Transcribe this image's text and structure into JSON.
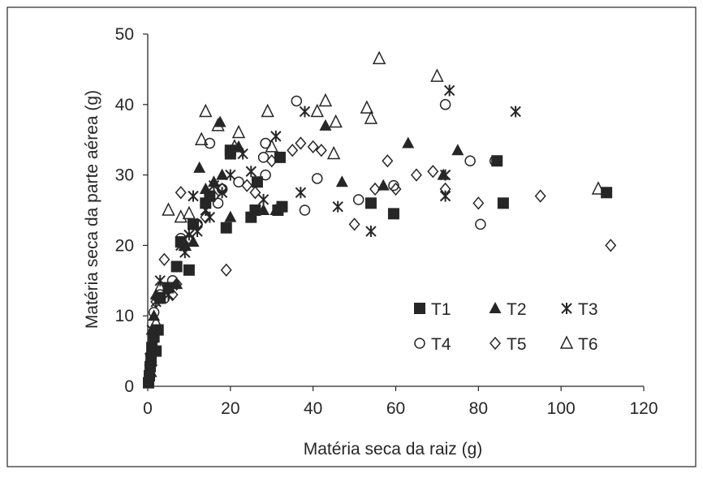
{
  "chart_data": {
    "type": "scatter",
    "xlabel": "Matéria seca da raiz (g)",
    "ylabel": "Matéria seca da parte aérea (g)",
    "xlim": [
      0,
      120
    ],
    "ylim": [
      0,
      50
    ],
    "xticks": [
      "0",
      "20",
      "40",
      "60",
      "80",
      "100",
      "120"
    ],
    "yticks": [
      "0",
      "10",
      "20",
      "30",
      "40",
      "50"
    ],
    "grid": false,
    "legend_position": "lower-right, inside plot, two rows",
    "color": "#262626",
    "series": [
      {
        "name": "T1",
        "marker": "filled-square",
        "points": [
          [
            0.2,
            0.5
          ],
          [
            0.4,
            1.5
          ],
          [
            0.6,
            2.8
          ],
          [
            0.8,
            4.0
          ],
          [
            1.0,
            5.5
          ],
          [
            1.5,
            7.0
          ],
          [
            2.0,
            5.0
          ],
          [
            2.5,
            8.0
          ],
          [
            3,
            12.5
          ],
          [
            5,
            14
          ],
          [
            7,
            17
          ],
          [
            8,
            20.5
          ],
          [
            10,
            16.5
          ],
          [
            11,
            23
          ],
          [
            14,
            26
          ],
          [
            15,
            27
          ],
          [
            20,
            33
          ],
          [
            20,
            33.5
          ],
          [
            19,
            22.5
          ],
          [
            25,
            24
          ],
          [
            26,
            25
          ],
          [
            26.5,
            29
          ],
          [
            31.5,
            25
          ],
          [
            32.5,
            25.5
          ],
          [
            32,
            32.5
          ],
          [
            54,
            26
          ],
          [
            59.5,
            24.5
          ],
          [
            84.5,
            32
          ],
          [
            86,
            26
          ],
          [
            111,
            27.5
          ]
        ]
      },
      {
        "name": "T2",
        "marker": "filled-triangle",
        "points": [
          [
            0.8,
            2
          ],
          [
            1,
            8
          ],
          [
            1.5,
            10
          ],
          [
            2,
            13
          ],
          [
            3,
            12.5
          ],
          [
            7,
            14.5
          ],
          [
            9,
            20
          ],
          [
            11,
            20.5
          ],
          [
            12.5,
            31
          ],
          [
            14,
            28
          ],
          [
            16,
            29
          ],
          [
            17.5,
            37.5
          ],
          [
            18,
            30
          ],
          [
            20,
            24
          ],
          [
            22,
            34
          ],
          [
            28,
            25
          ],
          [
            31,
            25
          ],
          [
            43,
            37
          ],
          [
            47,
            29
          ],
          [
            57,
            28.5
          ],
          [
            63,
            34.5
          ],
          [
            71.5,
            30
          ],
          [
            75,
            33.5
          ]
        ]
      },
      {
        "name": "T3",
        "marker": "asterisk",
        "points": [
          [
            0.5,
            4
          ],
          [
            1,
            8
          ],
          [
            2,
            12
          ],
          [
            3,
            15
          ],
          [
            5,
            13
          ],
          [
            7,
            17
          ],
          [
            8,
            20
          ],
          [
            9,
            19
          ],
          [
            10,
            21.5
          ],
          [
            12,
            22
          ],
          [
            11,
            27
          ],
          [
            14,
            25
          ],
          [
            15,
            24
          ],
          [
            16,
            28.5
          ],
          [
            18,
            27.5
          ],
          [
            20,
            30
          ],
          [
            23,
            33
          ],
          [
            25,
            30.5
          ],
          [
            28,
            26.5
          ],
          [
            31,
            35.5
          ],
          [
            37,
            27.5
          ],
          [
            38,
            39
          ],
          [
            46,
            25.5
          ],
          [
            54,
            22
          ],
          [
            72,
            27
          ],
          [
            72,
            30
          ],
          [
            73,
            42
          ],
          [
            89,
            39
          ]
        ]
      },
      {
        "name": "T4",
        "marker": "open-circle",
        "points": [
          [
            0.5,
            3
          ],
          [
            1.5,
            10.5
          ],
          [
            3,
            13
          ],
          [
            4,
            12.5
          ],
          [
            6,
            15
          ],
          [
            8,
            21
          ],
          [
            12,
            23
          ],
          [
            15,
            34.5
          ],
          [
            17,
            26
          ],
          [
            18,
            28
          ],
          [
            22,
            29
          ],
          [
            28,
            32.5
          ],
          [
            28.5,
            30
          ],
          [
            28.5,
            34.5
          ],
          [
            36,
            40.5
          ],
          [
            38,
            25
          ],
          [
            41,
            29.5
          ],
          [
            51,
            26.5
          ],
          [
            59.5,
            28.5
          ],
          [
            72,
            40
          ],
          [
            78,
            32
          ],
          [
            80.5,
            23
          ],
          [
            84,
            32
          ]
        ]
      },
      {
        "name": "T5",
        "marker": "open-diamond",
        "points": [
          [
            1,
            3
          ],
          [
            2,
            12
          ],
          [
            4,
            18
          ],
          [
            6,
            13
          ],
          [
            7,
            14.5
          ],
          [
            8,
            27.5
          ],
          [
            10,
            21
          ],
          [
            12,
            23
          ],
          [
            14,
            24
          ],
          [
            16,
            27
          ],
          [
            18,
            28
          ],
          [
            19,
            16.5
          ],
          [
            24,
            28.5
          ],
          [
            26,
            27.5
          ],
          [
            30,
            32
          ],
          [
            35,
            33.5
          ],
          [
            37,
            34.5
          ],
          [
            40,
            34
          ],
          [
            42,
            33.5
          ],
          [
            50,
            23
          ],
          [
            55,
            28
          ],
          [
            58,
            32
          ],
          [
            60,
            28
          ],
          [
            65,
            30
          ],
          [
            69,
            30.5
          ],
          [
            72,
            28
          ],
          [
            80,
            26
          ],
          [
            95,
            27
          ],
          [
            112,
            20
          ]
        ]
      },
      {
        "name": "T6",
        "marker": "open-triangle",
        "points": [
          [
            1,
            5
          ],
          [
            2,
            9
          ],
          [
            3,
            14
          ],
          [
            5,
            25
          ],
          [
            8,
            24
          ],
          [
            9,
            20
          ],
          [
            10,
            24.5
          ],
          [
            13,
            35
          ],
          [
            14,
            39
          ],
          [
            17,
            37
          ],
          [
            21,
            34
          ],
          [
            22,
            36
          ],
          [
            29,
            39
          ],
          [
            30,
            34
          ],
          [
            41,
            39
          ],
          [
            43,
            40.5
          ],
          [
            45,
            33
          ],
          [
            45.5,
            37.5
          ],
          [
            53,
            39.5
          ],
          [
            54,
            38
          ],
          [
            56,
            46.5
          ],
          [
            70,
            44
          ],
          [
            109,
            28
          ]
        ]
      }
    ]
  }
}
